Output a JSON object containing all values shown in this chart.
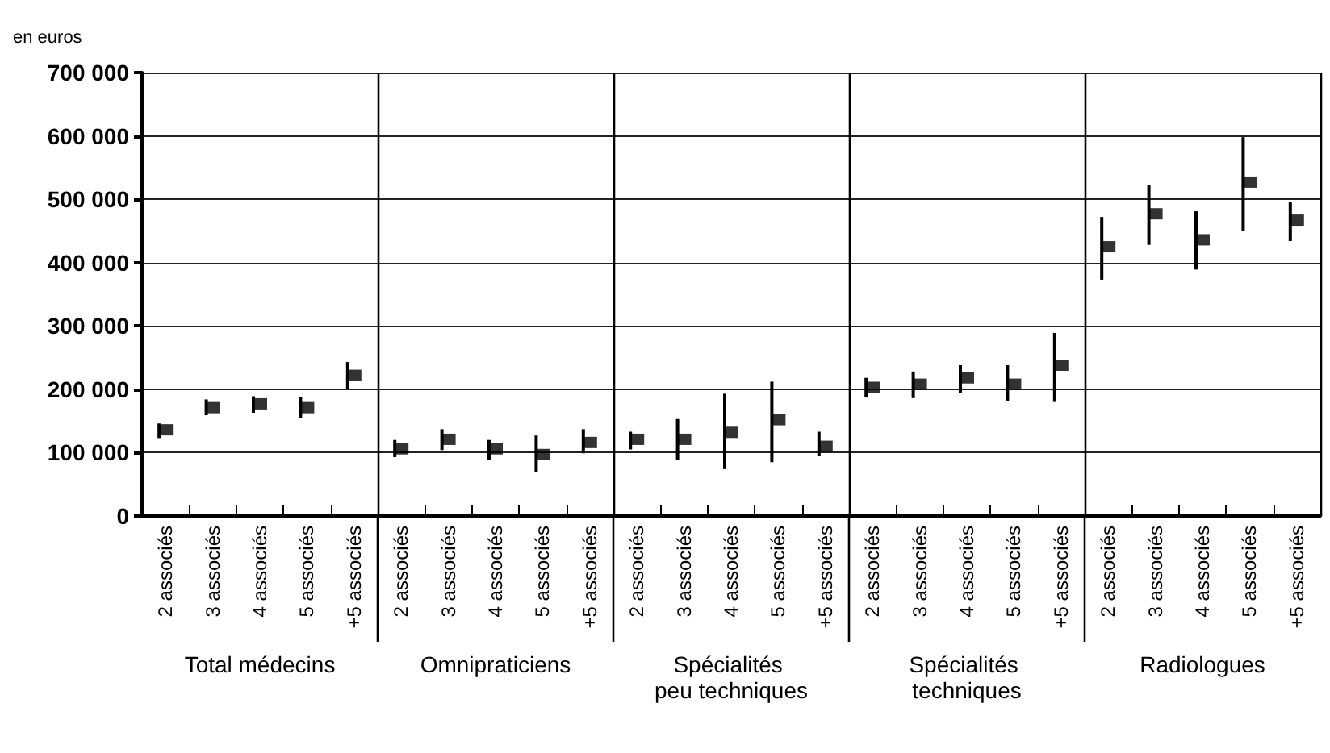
{
  "chart_data": {
    "type": "scatter",
    "ylabel": "en euros",
    "categories": [
      "2 associés",
      "3 associés",
      "4 associés",
      "5 associés",
      "+5 associés",
      "2 associés",
      "3 associés",
      "4 associés",
      "5 associés",
      "+5 associés",
      "2 associés",
      "3 associés",
      "4 associés",
      "5 associés",
      "+5 associés",
      "2 associés",
      "3 associés",
      "4 associés",
      "5 associés",
      "+5 associés",
      "2 associés",
      "3 associés",
      "4 associés",
      "5 associés",
      "+5 associés"
    ],
    "series": [
      {
        "color": "#000000",
        "values": [
          136000,
          171000,
          177000,
          171000,
          222000,
          106000,
          121000,
          106000,
          97000,
          116000,
          121000,
          121000,
          132000,
          152000,
          110000,
          203000,
          208000,
          218000,
          208000,
          238000,
          425000,
          477000,
          436000,
          527000,
          467000
        ],
        "errors": [
          [
            123000,
            146000
          ],
          [
            159000,
            184000
          ],
          [
            163000,
            189000
          ],
          [
            154000,
            188000
          ],
          [
            201000,
            243000
          ],
          [
            93000,
            120000
          ],
          [
            104000,
            137000
          ],
          [
            88000,
            120000
          ],
          [
            70000,
            127000
          ],
          [
            99000,
            137000
          ],
          [
            105000,
            133000
          ],
          [
            88000,
            153000
          ],
          [
            74000,
            193000
          ],
          [
            85000,
            212000
          ],
          [
            95000,
            133000
          ],
          [
            187000,
            218000
          ],
          [
            186000,
            228000
          ],
          [
            194000,
            238000
          ],
          [
            182000,
            238000
          ],
          [
            180000,
            289000
          ],
          [
            373000,
            472000
          ],
          [
            428000,
            523000
          ],
          [
            389000,
            481000
          ],
          [
            450000,
            598000
          ],
          [
            434000,
            496000
          ]
        ]
      }
    ],
    "ylim": [
      0,
      700000
    ],
    "yticks": [
      {
        "value": 0,
        "label": "0"
      },
      {
        "value": 100000,
        "label": "100 000"
      },
      {
        "value": 200000,
        "label": "200 000"
      },
      {
        "value": 300000,
        "label": "300 000"
      },
      {
        "value": 400000,
        "label": "400 000"
      },
      {
        "value": 500000,
        "label": "500 000"
      },
      {
        "value": 600000,
        "label": "600 000"
      },
      {
        "value": 700000,
        "label": "700 000"
      }
    ],
    "grid": "y",
    "marker": "square",
    "annotations": [
      "Total médecins",
      "Omnipraticiens",
      "Spécialités peu techniques",
      "Spécialités techniques",
      "Radiologues"
    ]
  }
}
